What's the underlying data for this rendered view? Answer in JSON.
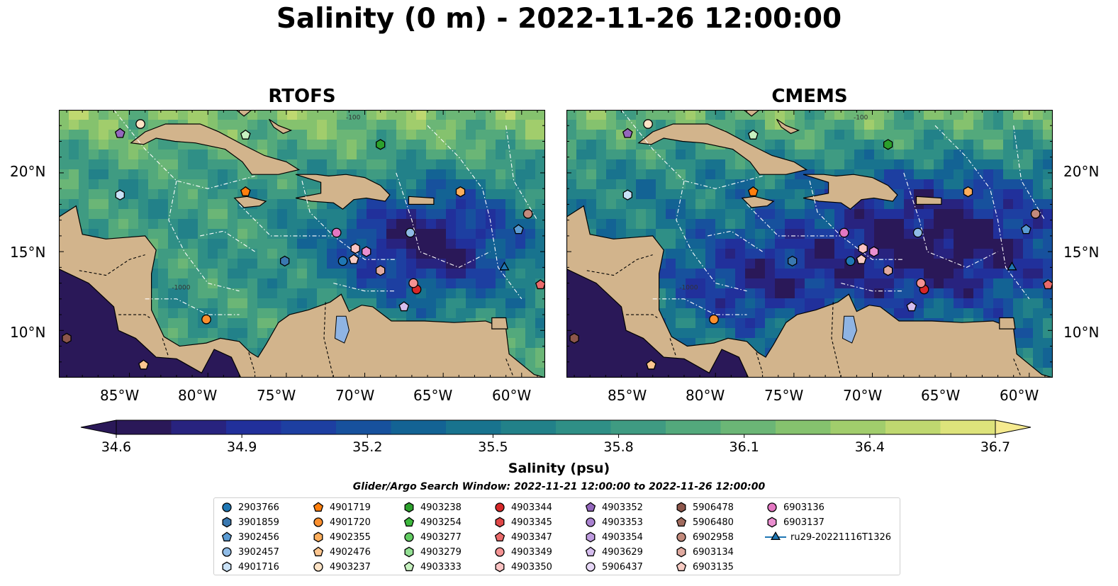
{
  "title": "Salinity (0 m) - 2022-11-26 12:00:00",
  "colors": {
    "land": "#d2b48c",
    "ocean_mid": "#2d7f8e",
    "cmap": [
      "#2a1858",
      "#28237f",
      "#21309b",
      "#1d3fa1",
      "#17519d",
      "#136394",
      "#18738e",
      "#228189",
      "#2f8f86",
      "#3f9b82",
      "#53a97c",
      "#6bb676",
      "#85c26e",
      "#a1cd6c",
      "#bfd870",
      "#dde37b",
      "#f5ea8f"
    ]
  },
  "chart_data": [
    {
      "type": "heatmap",
      "title": "RTOFS",
      "lon_ticks": [
        "85°W",
        "80°W",
        "75°W",
        "70°W",
        "65°W",
        "60°W"
      ],
      "lat_ticks": [
        "20°N",
        "15°N",
        "10°N"
      ],
      "xlim": [
        -89.5,
        -58.5
      ],
      "ylim": [
        7,
        24
      ],
      "contour_labels": [
        "-100",
        "-1000"
      ]
    },
    {
      "type": "heatmap",
      "title": "CMEMS",
      "lon_ticks": [
        "85°W",
        "80°W",
        "75°W",
        "70°W",
        "65°W",
        "60°W"
      ],
      "lat_ticks": [
        "20°N",
        "15°N",
        "10°N"
      ],
      "xlim": [
        -89.5,
        -58.5
      ],
      "ylim": [
        7,
        24
      ],
      "contour_labels": [
        "-100",
        "-1000"
      ]
    }
  ],
  "colorbar": {
    "label": "Salinity (psu)",
    "range": [
      34.6,
      36.7
    ],
    "ticks": [
      "34.6",
      "34.9",
      "35.2",
      "35.5",
      "35.8",
      "36.1",
      "36.4",
      "36.7"
    ],
    "extend": "both"
  },
  "legend": {
    "title": "Glider/Argo Search Window: 2022-11-21 12:00:00 to 2022-11-26 12:00:00",
    "items": [
      {
        "label": "2903766",
        "marker": "circle",
        "color": "#1f77b4"
      },
      {
        "label": "3901859",
        "marker": "hexagon",
        "color": "#3a78b0"
      },
      {
        "label": "3902456",
        "marker": "pentagon",
        "color": "#5a9bd3"
      },
      {
        "label": "3902457",
        "marker": "circle",
        "color": "#8fbbe6"
      },
      {
        "label": "4901716",
        "marker": "hexagon",
        "color": "#c9e1f6"
      },
      {
        "label": "4901719",
        "marker": "pentagon",
        "color": "#ff7f0e"
      },
      {
        "label": "4901720",
        "marker": "circle",
        "color": "#fb8f2e"
      },
      {
        "label": "4902355",
        "marker": "hexagon",
        "color": "#fdae5c"
      },
      {
        "label": "4902476",
        "marker": "pentagon",
        "color": "#fdc68f"
      },
      {
        "label": "4903237",
        "marker": "circle",
        "color": "#fde3c6"
      },
      {
        "label": "4903238",
        "marker": "hexagon",
        "color": "#2ca02c"
      },
      {
        "label": "4903254",
        "marker": "pentagon",
        "color": "#3db83d"
      },
      {
        "label": "4903277",
        "marker": "circle",
        "color": "#62cc62"
      },
      {
        "label": "4903279",
        "marker": "hexagon",
        "color": "#93df93"
      },
      {
        "label": "4903333",
        "marker": "pentagon",
        "color": "#c7f1c0"
      },
      {
        "label": "4903344",
        "marker": "circle",
        "color": "#d62728"
      },
      {
        "label": "4903345",
        "marker": "hexagon",
        "color": "#e04747"
      },
      {
        "label": "4903347",
        "marker": "pentagon",
        "color": "#ea6a6a"
      },
      {
        "label": "4903349",
        "marker": "circle",
        "color": "#f49393"
      },
      {
        "label": "4903350",
        "marker": "hexagon",
        "color": "#fbc3c3"
      },
      {
        "label": "4903352",
        "marker": "pentagon",
        "color": "#9467bd"
      },
      {
        "label": "4903353",
        "marker": "circle",
        "color": "#a982d0"
      },
      {
        "label": "4903354",
        "marker": "hexagon",
        "color": "#bf9ce0"
      },
      {
        "label": "4903629",
        "marker": "pentagon",
        "color": "#d5bdee"
      },
      {
        "label": "5906437",
        "marker": "circle",
        "color": "#e7d8f7"
      },
      {
        "label": "5906478",
        "marker": "hexagon",
        "color": "#8c564b"
      },
      {
        "label": "5906480",
        "marker": "pentagon",
        "color": "#a16b5e"
      },
      {
        "label": "6902958",
        "marker": "circle",
        "color": "#c28a7c"
      },
      {
        "label": "6903134",
        "marker": "hexagon",
        "color": "#e0aaa0"
      },
      {
        "label": "6903135",
        "marker": "pentagon",
        "color": "#f7cbc3"
      },
      {
        "label": "6903136",
        "marker": "circle",
        "color": "#e377c2"
      },
      {
        "label": "6903137",
        "marker": "hexagon",
        "color": "#ea8fd0"
      },
      {
        "label": "ru29-20221116T1326",
        "marker": "triangle-line",
        "color": "#1f77b4"
      }
    ]
  },
  "floats": [
    {
      "id": "2903766",
      "lon": -71.4,
      "lat": 14.4
    },
    {
      "id": "3901859",
      "lon": -75.1,
      "lat": 14.4
    },
    {
      "id": "3902457",
      "lon": -67.1,
      "lat": 16.2
    },
    {
      "id": "4901716",
      "lon": -85.6,
      "lat": 18.6
    },
    {
      "id": "4901719",
      "lon": -77.6,
      "lat": 18.8
    },
    {
      "id": "4901720",
      "lon": -80.1,
      "lat": 10.7
    },
    {
      "id": "4902355",
      "lon": -63.9,
      "lat": 18.8
    },
    {
      "id": "4902476",
      "lon": -84.1,
      "lat": 7.8
    },
    {
      "id": "4903237",
      "lon": -84.3,
      "lat": 23.1
    },
    {
      "id": "4903238",
      "lon": -69.0,
      "lat": 21.8
    },
    {
      "id": "4903333",
      "lon": -77.6,
      "lat": 22.4
    },
    {
      "id": "4903344",
      "lon": -66.7,
      "lat": 12.6
    },
    {
      "id": "4903347",
      "lon": -58.8,
      "lat": 12.9
    },
    {
      "id": "4903349",
      "lon": -66.9,
      "lat": 13.0
    },
    {
      "id": "4903350",
      "lon": -70.6,
      "lat": 15.2
    },
    {
      "id": "4903352",
      "lon": -85.6,
      "lat": 22.5
    },
    {
      "id": "4903629",
      "lon": -67.5,
      "lat": 11.5
    },
    {
      "id": "5906478",
      "lon": -89.0,
      "lat": 9.5
    },
    {
      "id": "6902958",
      "lon": -59.6,
      "lat": 17.4
    },
    {
      "id": "6903134",
      "lon": -69.0,
      "lat": 13.8
    },
    {
      "id": "6903135",
      "lon": -70.7,
      "lat": 14.5
    },
    {
      "id": "6903136",
      "lon": -71.8,
      "lat": 16.2
    },
    {
      "id": "6903137",
      "lon": -69.9,
      "lat": 15.0
    },
    {
      "id": "3902456",
      "lon": -60.2,
      "lat": 16.4
    },
    {
      "id": "ru29-20221116T1326",
      "lon": -61.1,
      "lat": 14.0
    }
  ]
}
